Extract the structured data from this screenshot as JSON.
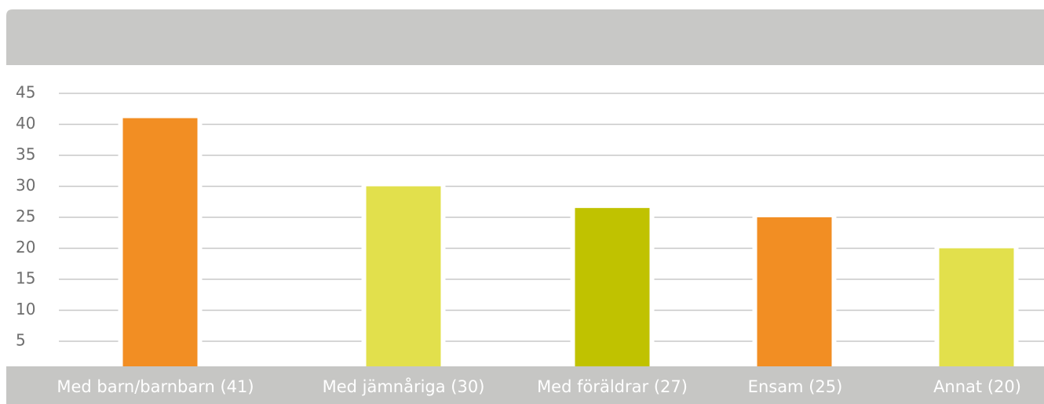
{
  "chart_data": {
    "type": "bar",
    "categories": [
      "Med barn/barnbarn (41)",
      "Med jämnåriga (30)",
      "Med föräldrar (27)",
      "Ensam (25)",
      "Annat (20)"
    ],
    "values": [
      41,
      30,
      26.5,
      25,
      20
    ],
    "colors": [
      "#f28e23",
      "#e2e04c",
      "#c0c200",
      "#f28e23",
      "#e2e04c"
    ],
    "ylim": [
      0,
      45
    ],
    "yticks": [
      5,
      10,
      15,
      20,
      25,
      30,
      35,
      40,
      45
    ],
    "grid": true
  }
}
